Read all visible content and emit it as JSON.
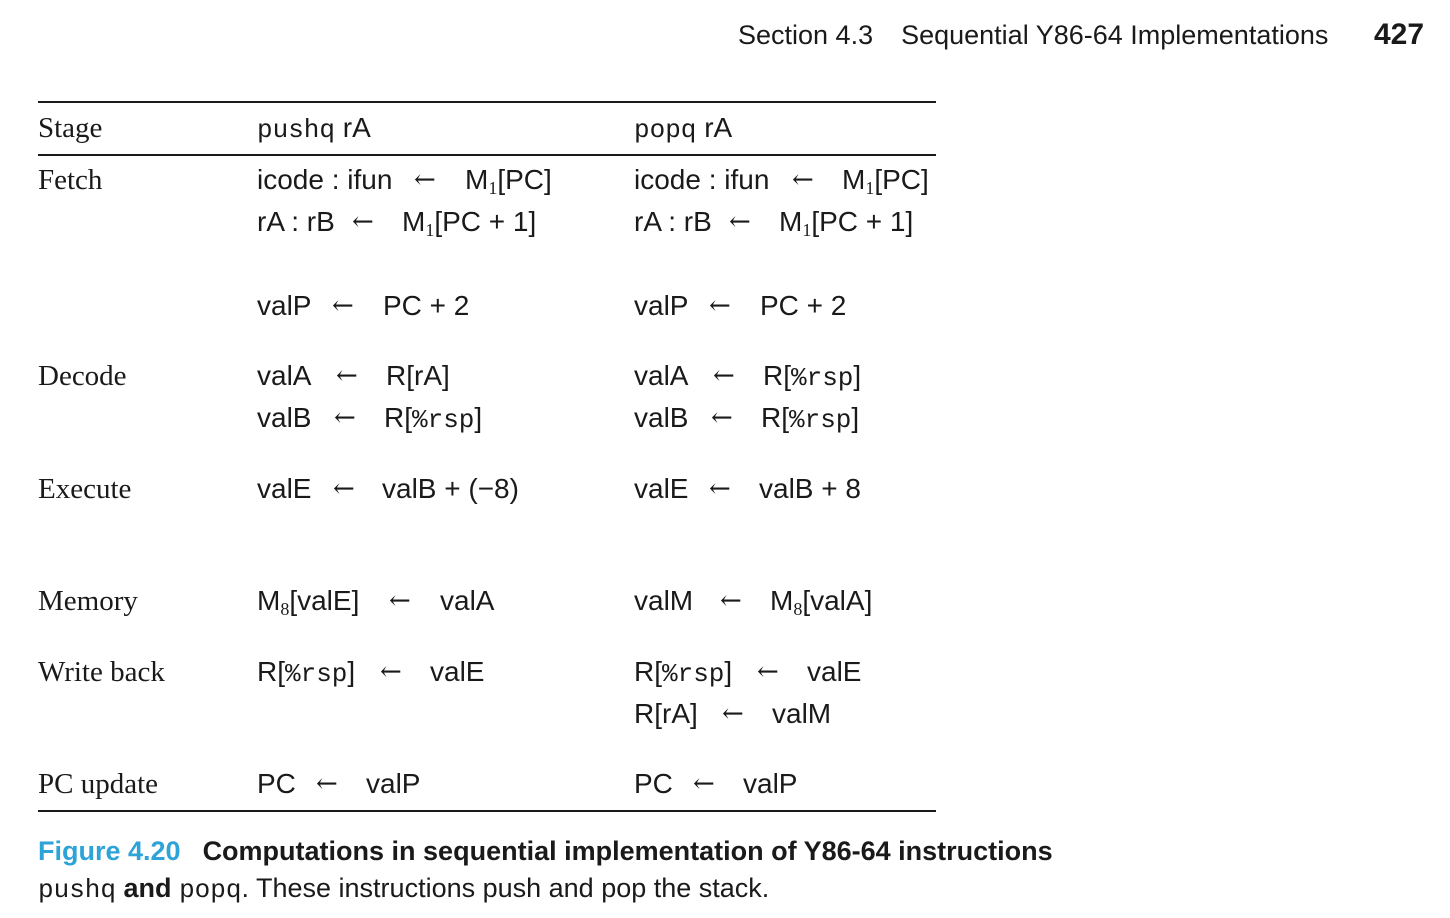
{
  "header": {
    "section": "Section 4.3",
    "title": "Sequential Y86-64 Implementations",
    "page_number": "427"
  },
  "table": {
    "headers": {
      "stage": "Stage",
      "push_op": "pushq",
      "push_reg": "rA",
      "pop_op": "popq",
      "pop_reg": "rA"
    },
    "stages": {
      "fetch": "Fetch",
      "decode": "Decode",
      "execute": "Execute",
      "memory": "Memory",
      "writeback": "Write back",
      "pcupdate": "PC update"
    },
    "arrow": "←",
    "push": {
      "fetch1": {
        "lhs": "icode : ifun",
        "rhs_a": "M",
        "rhs_sub": "1",
        "rhs_b": "[PC]"
      },
      "fetch2": {
        "lhs": "rA : rB",
        "rhs_a": "M",
        "rhs_sub": "1",
        "rhs_b": "[PC + 1]"
      },
      "fetch3": {
        "lhs": "valP",
        "rhs": "PC + 2"
      },
      "decode1": {
        "lhs": "valA",
        "rhs": "R[rA]"
      },
      "decode2": {
        "lhs": "valB",
        "rhs_a": "R[",
        "rhs_code": "%rsp",
        "rhs_b": "]"
      },
      "execute1": {
        "lhs": "valE",
        "rhs": "valB + (−8)"
      },
      "memory1": {
        "lhs_a": "M",
        "lhs_sub": "8",
        "lhs_b": "[valE]",
        "rhs": "valA"
      },
      "writeback1": {
        "lhs_a": "R[",
        "lhs_code": "%rsp",
        "lhs_b": "]",
        "rhs": "valE"
      },
      "pcupdate1": {
        "lhs": "PC",
        "rhs": "valP"
      }
    },
    "pop": {
      "fetch1": {
        "lhs": "icode : ifun",
        "rhs_a": "M",
        "rhs_sub": "1",
        "rhs_b": "[PC]"
      },
      "fetch2": {
        "lhs": "rA : rB",
        "rhs_a": "M",
        "rhs_sub": "1",
        "rhs_b": "[PC + 1]"
      },
      "fetch3": {
        "lhs": "valP",
        "rhs": "PC + 2"
      },
      "decode1": {
        "lhs": "valA",
        "rhs_a": "R[",
        "rhs_code": "%rsp",
        "rhs_b": "]"
      },
      "decode2": {
        "lhs": "valB",
        "rhs_a": "R[",
        "rhs_code": "%rsp",
        "rhs_b": "]"
      },
      "execute1": {
        "lhs": "valE",
        "rhs": "valB + 8"
      },
      "memory1": {
        "lhs": "valM",
        "rhs_a": "M",
        "rhs_sub": "8",
        "rhs_b": "[valA]"
      },
      "writeback1": {
        "lhs_a": "R[",
        "lhs_code": "%rsp",
        "lhs_b": "]",
        "rhs": "valE"
      },
      "writeback2": {
        "lhs": "R[rA]",
        "rhs": "valM"
      },
      "pcupdate1": {
        "lhs": "PC",
        "rhs": "valP"
      }
    }
  },
  "caption": {
    "label": "Figure 4.20",
    "title": "Computations in sequential implementation of Y86-64 instructions",
    "code1": "pushq",
    "and_word": "and",
    "code2": "popq",
    "rest": ". These instructions push and pop the stack.",
    "label_color": "#2ea3d8"
  }
}
